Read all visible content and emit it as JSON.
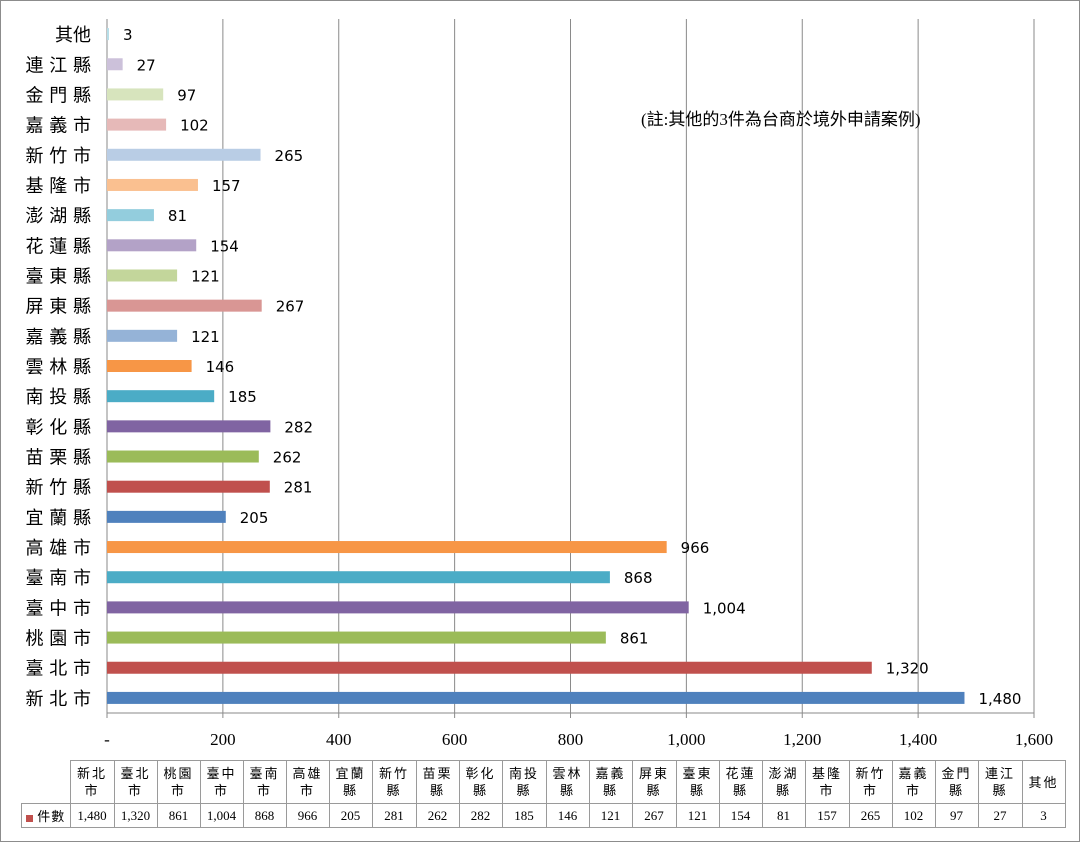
{
  "chart_data": {
    "type": "bar",
    "orientation": "horizontal",
    "categories": [
      "新北市",
      "臺北市",
      "桃園市",
      "臺中市",
      "臺南市",
      "高雄市",
      "宜蘭縣",
      "新竹縣",
      "苗栗縣",
      "彰化縣",
      "南投縣",
      "雲林縣",
      "嘉義縣",
      "屏東縣",
      "臺東縣",
      "花蓮縣",
      "澎湖縣",
      "基隆市",
      "新竹市",
      "嘉義市",
      "金門縣",
      "連江縣",
      "其他"
    ],
    "axis_labels": [
      "新 北 市",
      "臺 北 市",
      "桃 園 市",
      "臺 中 市",
      "臺 南 市",
      "高 雄 市",
      "宜 蘭 縣",
      "新 竹 縣",
      "苗 栗 縣",
      "彰 化 縣",
      "南 投 縣",
      "雲 林 縣",
      "嘉 義 縣",
      "屏 東 縣",
      "臺 東 縣",
      "花 蓮 縣",
      "澎 湖 縣",
      "基 隆 市",
      "新 竹 市",
      "嘉 義 市",
      "金 門 縣",
      "連 江 縣",
      "其他"
    ],
    "series": [
      {
        "name": "件數",
        "values": [
          1480,
          1320,
          861,
          1004,
          868,
          966,
          205,
          281,
          262,
          282,
          185,
          146,
          121,
          267,
          121,
          154,
          81,
          157,
          265,
          102,
          97,
          27,
          3
        ]
      }
    ],
    "value_labels": [
      "1,480",
      "1,320",
      "861",
      "1,004",
      "868",
      "966",
      "205",
      "281",
      "262",
      "282",
      "185",
      "146",
      "121",
      "267",
      "121",
      "154",
      "81",
      "157",
      "265",
      "102",
      "97",
      "27",
      "3"
    ],
    "bar_colors": [
      "#4F81BD",
      "#C0504D",
      "#9BBB59",
      "#8064A2",
      "#4BACC6",
      "#F79646",
      "#4F81BD",
      "#C0504D",
      "#9BBB59",
      "#8064A2",
      "#4BACC6",
      "#F79646",
      "#95B3D7",
      "#D99694",
      "#C3D69B",
      "#B3A2C7",
      "#93CDDD",
      "#FAC090",
      "#B9CDE5",
      "#E6B9B8",
      "#D7E4BD",
      "#CCC1DA",
      "#B7DEE8"
    ],
    "xlim": [
      0,
      1600
    ],
    "xticks": [
      0,
      200,
      400,
      600,
      800,
      1000,
      1200,
      1400,
      1600
    ],
    "xtick_labels": [
      "-",
      "200",
      "400",
      "600",
      "800",
      "1,000",
      "1,200",
      "1,400",
      "1,600"
    ],
    "grid": "vertical",
    "legend": "table"
  },
  "note": "(註:其他的3件為台商於境外申請案例)",
  "table": {
    "legend_label": "件數",
    "headers": [
      "新北\n市",
      "臺北\n市",
      "桃園\n市",
      "臺中\n市",
      "臺南\n市",
      "高雄\n市",
      "宜蘭\n縣",
      "新竹\n縣",
      "苗栗\n縣",
      "彰化\n縣",
      "南投\n縣",
      "雲林\n縣",
      "嘉義\n縣",
      "屏東\n縣",
      "臺東\n縣",
      "花蓮\n縣",
      "澎湖\n縣",
      "基隆\n市",
      "新竹\n市",
      "嘉義\n市",
      "金門\n縣",
      "連江\n縣",
      "其他"
    ],
    "values": [
      "1,480",
      "1,320",
      "861",
      "1,004",
      "868",
      "966",
      "205",
      "281",
      "262",
      "282",
      "185",
      "146",
      "121",
      "267",
      "121",
      "154",
      "81",
      "157",
      "265",
      "102",
      "97",
      "27",
      "3"
    ]
  }
}
